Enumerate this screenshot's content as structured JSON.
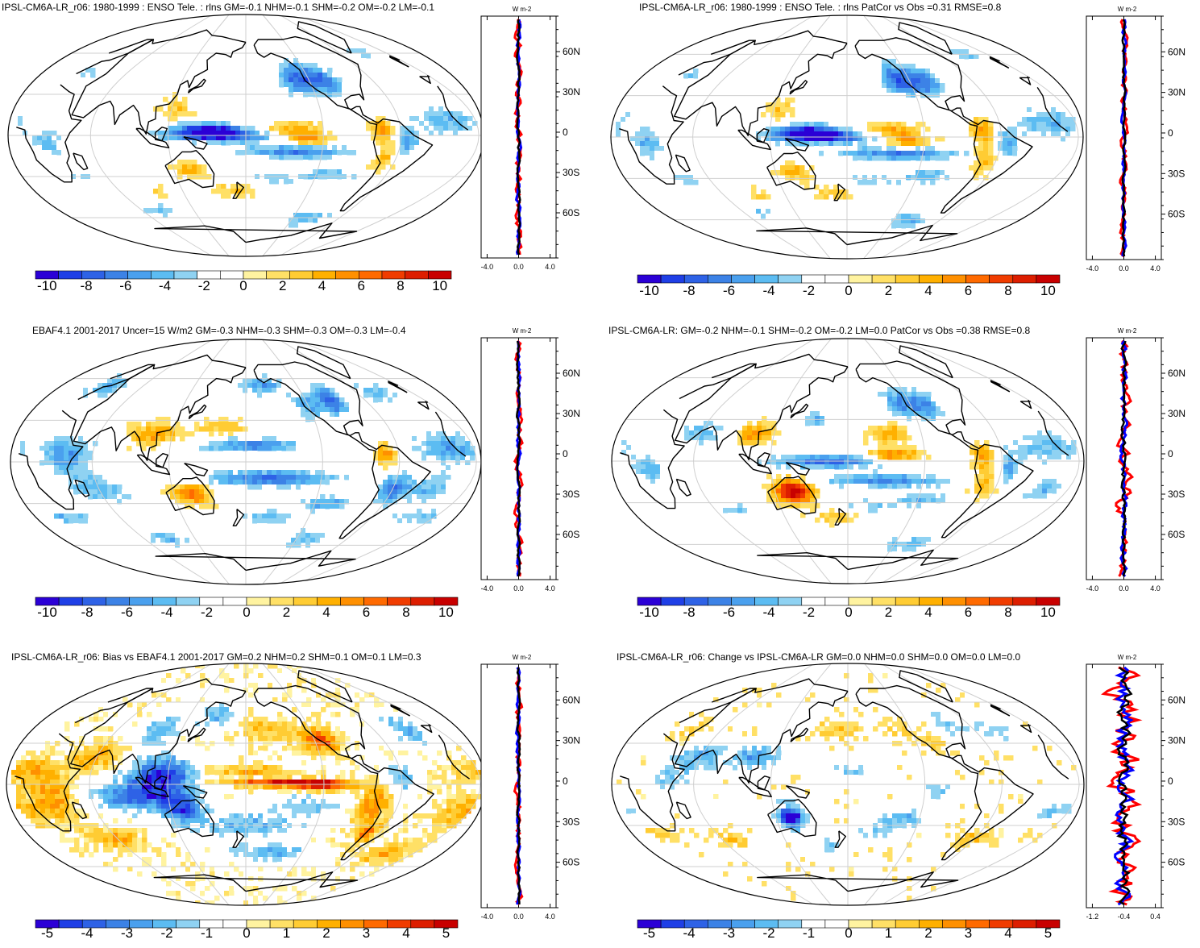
{
  "panels": [
    {
      "id": "p1",
      "title": "IPSL-CM6A-LR_r06: 1980-1999 : ENSO Tele. : rlns GM=-0.1 NHM=-0.1 SHM=-0.2 OM=-0.2 LM=-0.1",
      "map_style": "enso_model",
      "colorbar": {
        "labels": [
          "-10",
          "-8",
          "-6",
          "-4",
          "-2",
          "0",
          "2",
          "4",
          "6",
          "8",
          "10"
        ]
      },
      "profile": {
        "units": "W m-2",
        "xticks": [
          "-4.0",
          "0.0",
          "4.0"
        ],
        "lat_ticks": [
          "60N",
          "30N",
          "0",
          "30S",
          "60S"
        ],
        "variant": "small"
      }
    },
    {
      "id": "p2",
      "title": "IPSL-CM6A-LR_r06: 1980-1999 : ENSO Tele. : rlns PatCor vs Obs =0.31 RMSE=0.8",
      "map_style": "enso_model",
      "colorbar": {
        "labels": [
          "-10",
          "-8",
          "-6",
          "-4",
          "-2",
          "0",
          "2",
          "4",
          "6",
          "8",
          "10"
        ]
      },
      "profile": {
        "units": "W m-2",
        "xticks": [
          "-4.0",
          "0.0",
          "4.0"
        ],
        "lat_ticks": [
          "60N",
          "30N",
          "0",
          "30S",
          "60S"
        ],
        "variant": "small"
      }
    },
    {
      "id": "p3",
      "title": "EBAF4.1 2001-2017 Uncer=15 W/m2 GM=-0.3 NHM=-0.3 SHM=-0.3 OM=-0.3 LM=-0.4",
      "map_style": "enso_obs",
      "colorbar": {
        "labels": [
          "-10",
          "-8",
          "-6",
          "-4",
          "-2",
          "0",
          "2",
          "4",
          "6",
          "8",
          "10"
        ]
      },
      "profile": {
        "units": "W m-2",
        "xticks": [
          "-4.0",
          "0.0",
          "4.0"
        ],
        "lat_ticks": [
          "60N",
          "30N",
          "0",
          "30S",
          "60S"
        ],
        "variant": "small"
      }
    },
    {
      "id": "p4",
      "title": "IPSL-CM6A-LR: GM=-0.2 NHM=-0.1 SHM=-0.2 OM=-0.2 LM=0.0 PatCor vs Obs =0.38 RMSE=0.8",
      "map_style": "enso_model2",
      "colorbar": {
        "labels": [
          "-10",
          "-8",
          "-6",
          "-4",
          "-2",
          "0",
          "2",
          "4",
          "6",
          "8",
          "10"
        ]
      },
      "profile": {
        "units": "W m-2",
        "xticks": [
          "-4.0",
          "0.0",
          "4.0"
        ],
        "lat_ticks": [
          "60N",
          "30N",
          "0",
          "30S",
          "60S"
        ],
        "variant": "medium"
      }
    },
    {
      "id": "p5",
      "title": "IPSL-CM6A-LR_r06: Bias vs EBAF4.1 2001-2017 GM=0.2 NHM=0.2 SHM=0.1 OM=0.1 LM=0.3",
      "map_style": "bias",
      "colorbar": {
        "labels": [
          "-5",
          "-4",
          "-3",
          "-2",
          "-1",
          "0",
          "1",
          "2",
          "3",
          "4",
          "5"
        ]
      },
      "profile": {
        "units": "W m-2",
        "xticks": [
          "-4.0",
          "0.0",
          "4.0"
        ],
        "lat_ticks": [
          "60N",
          "30N",
          "0",
          "30S",
          "60S"
        ],
        "variant": "small"
      }
    },
    {
      "id": "p6",
      "title": "IPSL-CM6A-LR_r06: Change vs IPSL-CM6A-LR GM=0.0 NHM=0.0 SHM=0.0 OM=0.0 LM=0.0",
      "map_style": "change",
      "colorbar": {
        "labels": [
          "-5",
          "-4",
          "-3",
          "-2",
          "-1",
          "0",
          "1",
          "2",
          "3",
          "4",
          "5"
        ]
      },
      "profile": {
        "units": "W m-2",
        "xticks": [
          "-1.2",
          "-0.4",
          "0.4"
        ],
        "lat_ticks": [
          "60N",
          "30N",
          "0",
          "30S",
          "60S"
        ],
        "variant": "large"
      }
    }
  ],
  "colors": {
    "palette": [
      "#2b00d6",
      "#1f3fe6",
      "#2e62e6",
      "#3c82e6",
      "#4aa0ee",
      "#5cbcf2",
      "#8fd2f2",
      "#ffffff",
      "#ffffff",
      "#fff3a0",
      "#ffe066",
      "#ffcc33",
      "#ffb000",
      "#ff9000",
      "#ff6a00",
      "#f03c00",
      "#dd1e00",
      "#c80000"
    ],
    "land_outline": "#000000",
    "graticule": "#cfcfcf",
    "profile_model": "#ff0000",
    "profile_obs": "#0000ff",
    "profile_mean": "#000000"
  }
}
